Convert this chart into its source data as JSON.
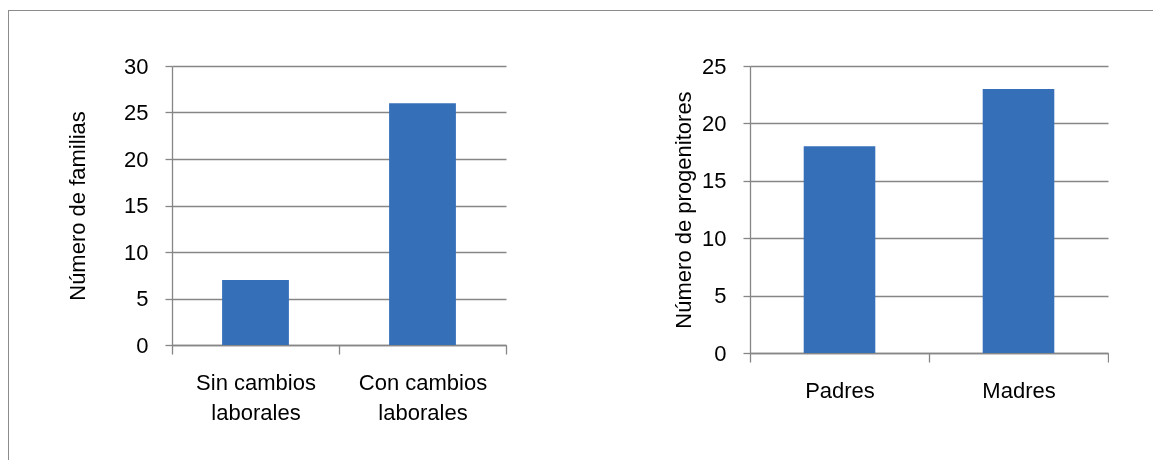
{
  "chart_data": [
    {
      "type": "bar",
      "ylabel": "Número de familias",
      "categories": [
        "Sin cambios laborales",
        "Con cambios laborales"
      ],
      "values": [
        7,
        26
      ],
      "color": "#356fb8",
      "ylim": [
        0,
        30
      ],
      "yticks": [
        0,
        5,
        10,
        15,
        20,
        25,
        30
      ],
      "grid": "y"
    },
    {
      "type": "bar",
      "ylabel": "Número de progenitores",
      "categories": [
        "Padres",
        "Madres"
      ],
      "values": [
        18,
        23
      ],
      "color": "#356fb8",
      "ylim": [
        0,
        25
      ],
      "yticks": [
        0,
        5,
        10,
        15,
        20,
        25
      ],
      "grid": "y"
    }
  ]
}
